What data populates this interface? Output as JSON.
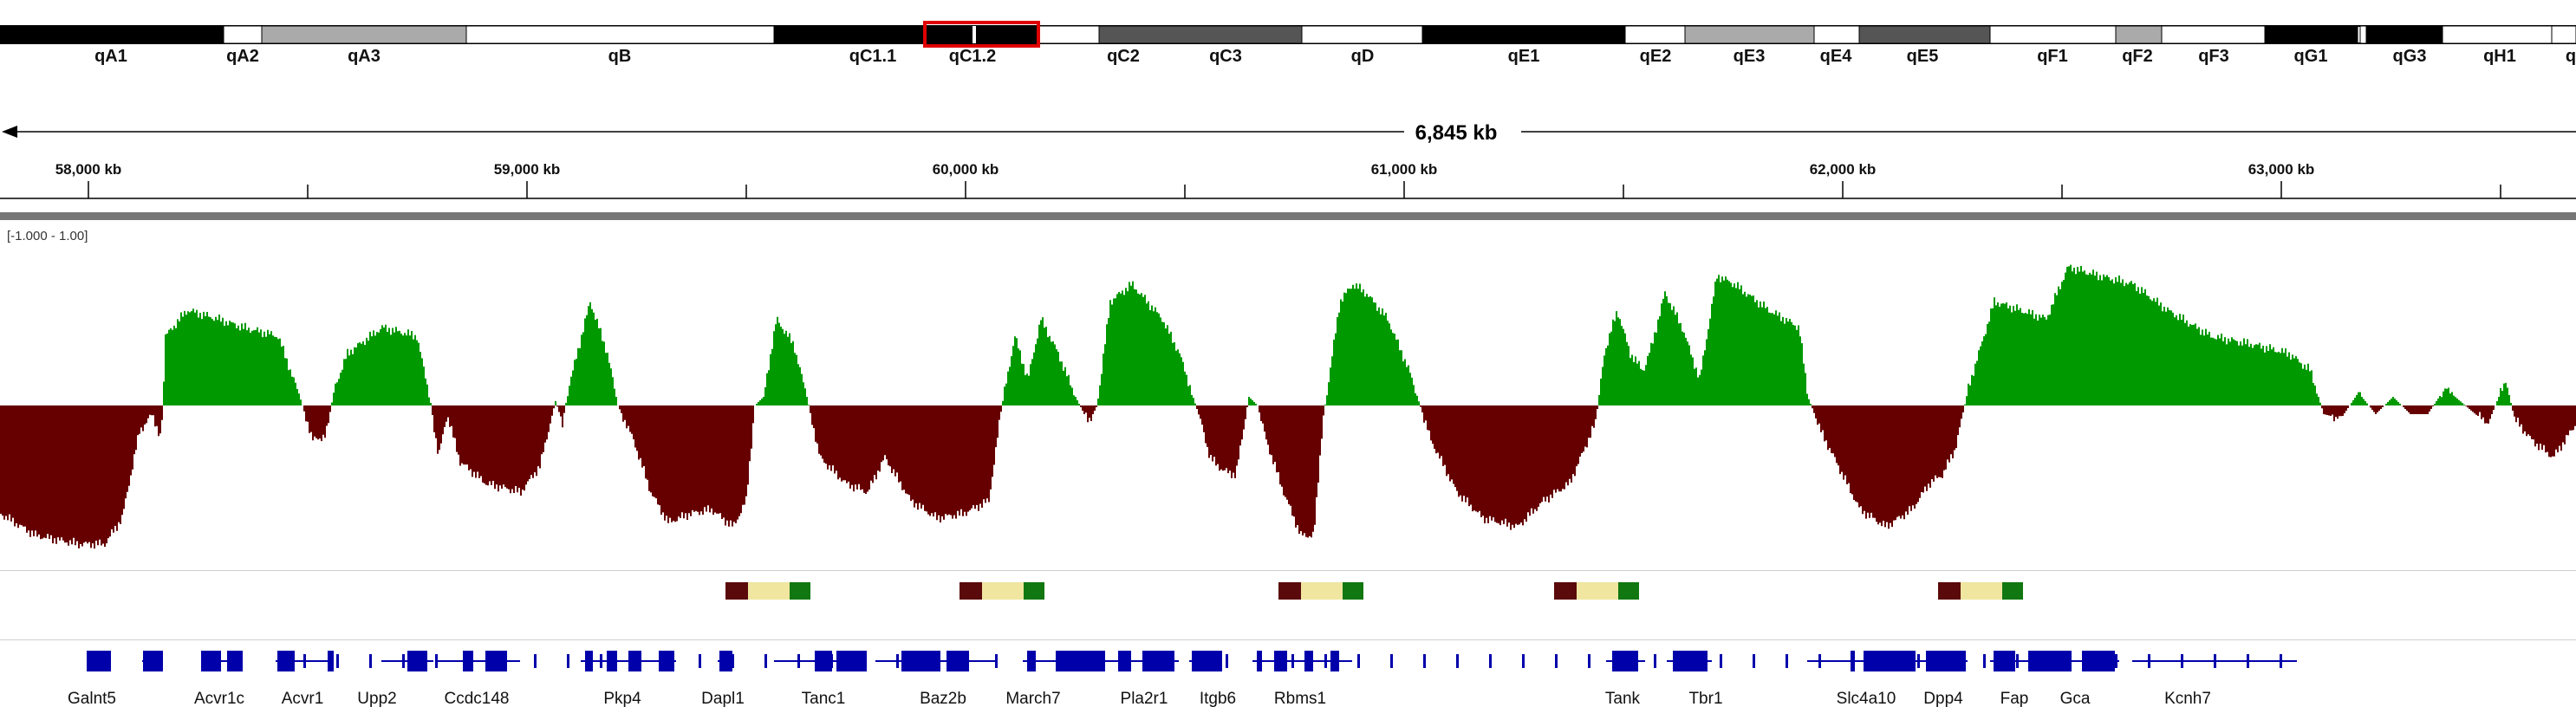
{
  "chromosome": {
    "bands": [
      {
        "name": "qA1",
        "stain": "black"
      },
      {
        "name": "qA2",
        "stain": "white"
      },
      {
        "name": "qA3",
        "stain": "lightgray"
      },
      {
        "name": "qB",
        "stain": "white"
      },
      {
        "name": "qC1.1",
        "stain": "black"
      },
      {
        "name": "qC1.2",
        "stain": "black"
      },
      {
        "name": "qC2",
        "stain": "white"
      },
      {
        "name": "qC3",
        "stain": "darkgray"
      },
      {
        "name": "qD",
        "stain": "white"
      },
      {
        "name": "qE1",
        "stain": "black"
      },
      {
        "name": "qE2",
        "stain": "white"
      },
      {
        "name": "qE3",
        "stain": "lightgray"
      },
      {
        "name": "qE4",
        "stain": "white"
      },
      {
        "name": "qE5",
        "stain": "darkgray"
      },
      {
        "name": "qF1",
        "stain": "white"
      },
      {
        "name": "qF2",
        "stain": "lightgray"
      },
      {
        "name": "qF3",
        "stain": "white"
      },
      {
        "name": "qG1",
        "stain": "black"
      },
      {
        "name": "qG3",
        "stain": "black"
      },
      {
        "name": "qH1",
        "stain": "white"
      },
      {
        "name": "q",
        "stain": "white"
      }
    ],
    "stain_colors": {
      "black": "#000000",
      "white": "#ffffff",
      "lightgray": "#aaaaaa",
      "darkgray": "#555555"
    },
    "highlight_color": "#e00000"
  },
  "ruler": {
    "span_label": "6,845 kb",
    "ticks": [
      {
        "kb": 58000,
        "label": "58,000 kb"
      },
      {
        "kb": 59000,
        "label": "59,000 kb"
      },
      {
        "kb": 60000,
        "label": "60,000 kb"
      },
      {
        "kb": 61000,
        "label": "61,000 kb"
      },
      {
        "kb": 62000,
        "label": "62,000 kb"
      },
      {
        "kb": 63000,
        "label": "63,000 kb"
      }
    ],
    "minor_ticks_kb": [
      58500,
      59500,
      60500,
      61500,
      62500,
      63500
    ]
  },
  "signal_track": {
    "range_label": "[-1.000 - 1.00]",
    "positive_color": "#009900",
    "negative_color": "#660000"
  },
  "segment_track": {
    "colors": [
      "#5a0a0a",
      "#f0e6a0",
      "#117711"
    ]
  },
  "genes": {
    "color": "#0000aa",
    "labels": [
      "Galnt5",
      "Acvr1c",
      "Acvr1",
      "Upp2",
      "Ccdc148",
      "Pkp4",
      "Dapl1",
      "Tanc1",
      "Baz2b",
      "March7",
      "Pla2r1",
      "Itgb6",
      "Rbms1",
      "Tank",
      "Tbr1",
      "Slc4a10",
      "Dpp4",
      "Fap",
      "Gca",
      "Kcnh7"
    ]
  }
}
